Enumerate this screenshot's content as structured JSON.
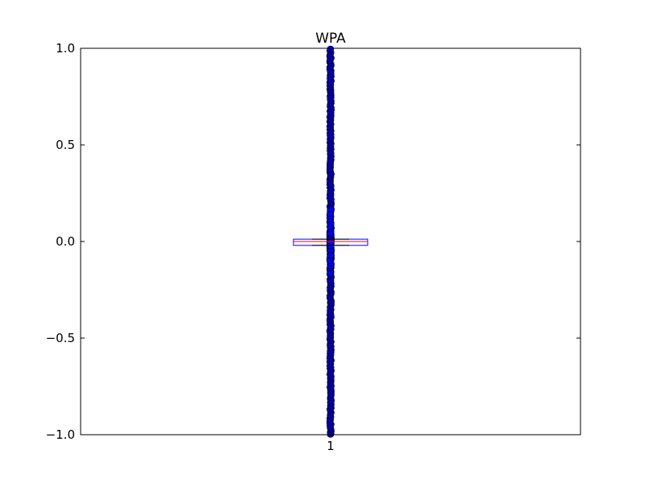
{
  "chart_data": {
    "type": "boxplot",
    "title": "WPA",
    "xlabel": "",
    "ylabel": "",
    "ylim": [
      -1.0,
      1.0
    ],
    "yticks": [
      -1.0,
      -0.5,
      0.0,
      0.5,
      1.0
    ],
    "ytick_labels": [
      "−1.0",
      "−0.5",
      "0.0",
      "0.5",
      "1.0"
    ],
    "categories": [
      "1"
    ],
    "grid": false,
    "legend": "none",
    "box": {
      "category": "1",
      "q1": -0.02,
      "median": 0.0,
      "q3": 0.012,
      "whisker_low": -0.02,
      "whisker_high": 0.012
    },
    "colors": {
      "box": "#0000ff",
      "median": "#ff0000",
      "flier_fill": "#0000ff",
      "flier_edge": "#000000",
      "axes": "#000000"
    },
    "fliers_description_range": [
      -1.0,
      1.0
    ]
  }
}
